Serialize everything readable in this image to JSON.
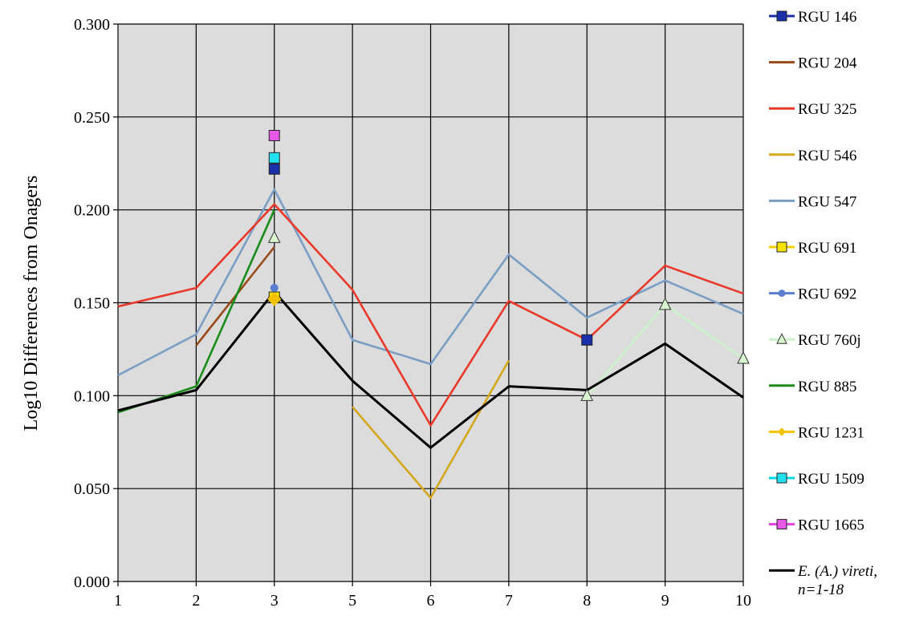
{
  "chart_data": {
    "type": "line",
    "title": "",
    "xlabel": "",
    "ylabel": "Log10 Differences from Onagers",
    "categories": [
      "1",
      "2",
      "3",
      "5",
      "6",
      "7",
      "8",
      "9",
      "10"
    ],
    "ylim": [
      0,
      0.3
    ],
    "yticks": [
      "0.000",
      "0.050",
      "0.100",
      "0.150",
      "0.200",
      "0.250",
      "0.300"
    ],
    "grid": true,
    "background": "#dcdcdc",
    "legend_position": "right",
    "series": [
      {
        "name": "RGU 146",
        "color": "#1a2faa",
        "marker": "square",
        "marker_fill": "#1a2faa",
        "line": false,
        "values": [
          null,
          null,
          0.222,
          null,
          null,
          null,
          0.13,
          null,
          null
        ]
      },
      {
        "name": "RGU 204",
        "color": "#9a4a1a",
        "marker": "none",
        "line": true,
        "values": [
          null,
          0.127,
          0.18,
          null,
          null,
          null,
          null,
          null,
          null
        ]
      },
      {
        "name": "RGU 325",
        "color": "#e8392a",
        "marker": "none",
        "line": true,
        "values": [
          0.148,
          0.158,
          0.203,
          0.157,
          0.084,
          0.151,
          0.13,
          0.17,
          0.155
        ]
      },
      {
        "name": "RGU 546",
        "color": "#d4a81c",
        "marker": "none",
        "line": true,
        "values": [
          null,
          null,
          null,
          0.094,
          0.045,
          0.119,
          null,
          null,
          null
        ]
      },
      {
        "name": "RGU 547",
        "color": "#7a9ec4",
        "marker": "none",
        "line": true,
        "values": [
          0.111,
          0.133,
          0.211,
          0.13,
          0.117,
          0.176,
          0.142,
          0.162,
          0.144
        ]
      },
      {
        "name": "RGU 691",
        "color": "#f0d000",
        "marker": "square",
        "marker_fill": "#f5e400",
        "line": false,
        "values": [
          null,
          null,
          0.153,
          null,
          null,
          null,
          null,
          null,
          null
        ]
      },
      {
        "name": "RGU 692",
        "color": "#5a7fd0",
        "marker": "circle",
        "marker_fill": "#5a7fd0",
        "line": false,
        "values": [
          null,
          null,
          0.158,
          null,
          null,
          null,
          null,
          null,
          null
        ]
      },
      {
        "name": "RGU 760j",
        "color": "#ccf2cc",
        "marker": "triangle",
        "marker_fill": "#d8f5d0",
        "line": true,
        "values": [
          null,
          null,
          0.185,
          null,
          null,
          null,
          0.1,
          0.149,
          0.12
        ]
      },
      {
        "name": "RGU 885",
        "color": "#1a8c1a",
        "marker": "none",
        "line": true,
        "values": [
          0.091,
          0.105,
          0.2,
          null,
          null,
          null,
          null,
          null,
          null
        ]
      },
      {
        "name": "RGU 1231",
        "color": "#f2c200",
        "marker": "diamond",
        "marker_fill": "#f2c200",
        "line": false,
        "values": [
          null,
          null,
          0.152,
          null,
          null,
          null,
          null,
          null,
          null
        ]
      },
      {
        "name": "RGU 1509",
        "color": "#00d8e8",
        "marker": "square",
        "marker_fill": "#22e0f0",
        "line": false,
        "values": [
          null,
          null,
          0.228,
          null,
          null,
          null,
          null,
          null,
          null
        ]
      },
      {
        "name": "RGU 1665",
        "color": "#e040e0",
        "marker": "square",
        "marker_fill": "#e858e8",
        "line": false,
        "values": [
          null,
          null,
          0.24,
          null,
          null,
          null,
          null,
          null,
          null
        ]
      },
      {
        "name": "E. (A.) vireti, n=1-18",
        "color": "#000000",
        "marker": "none",
        "line": true,
        "values": [
          0.092,
          0.103,
          0.156,
          0.108,
          0.072,
          0.105,
          0.103,
          0.128,
          0.099
        ]
      }
    ],
    "legend": [
      {
        "label": "RGU 146",
        "italic": false
      },
      {
        "label": "RGU 204",
        "italic": false
      },
      {
        "label": "RGU 325",
        "italic": false
      },
      {
        "label": "RGU 546",
        "italic": false
      },
      {
        "label": "RGU 547",
        "italic": false
      },
      {
        "label": "RGU 691",
        "italic": false
      },
      {
        "label": "RGU 692",
        "italic": false
      },
      {
        "label": "RGU 760j",
        "italic": false
      },
      {
        "label": "RGU 885",
        "italic": false
      },
      {
        "label": "RGU 1231",
        "italic": false
      },
      {
        "label": "RGU 1509",
        "italic": false
      },
      {
        "label": "RGU 1665",
        "italic": false
      },
      {
        "label": "E. (A.) vireti,",
        "label2": "n=1-18",
        "italic": true
      }
    ]
  }
}
